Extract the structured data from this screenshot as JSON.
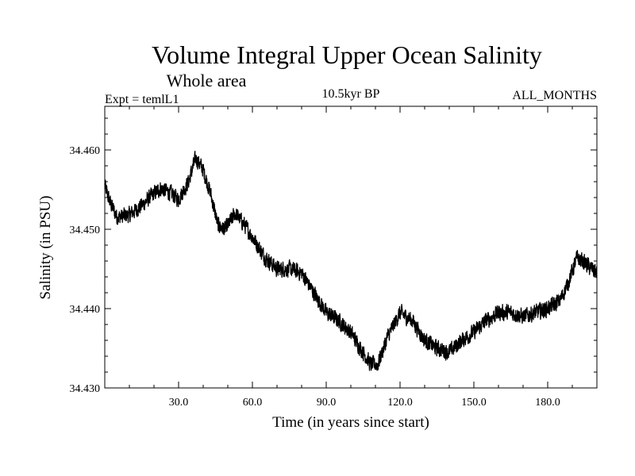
{
  "chart_data": {
    "type": "line",
    "title": "Volume Integral Upper Ocean Salinity",
    "subtitle": "Whole area",
    "expt_label": "Expt = temlL1",
    "period_label": "10.5kyr BP",
    "months_label": "ALL_MONTHS",
    "xlabel": "Time (in years since start)",
    "ylabel": "Salinity (in PSU)",
    "xlim": [
      0,
      200
    ],
    "ylim": [
      34.43,
      34.4655
    ],
    "x_ticks": [
      30,
      60,
      90,
      120,
      150,
      180
    ],
    "x_tick_labels": [
      "30.0",
      "60.0",
      "90.0",
      "120.0",
      "150.0",
      "180.0"
    ],
    "x_minor_step": 10,
    "y_ticks": [
      34.43,
      34.44,
      34.45,
      34.46
    ],
    "y_tick_labels": [
      "34.430",
      "34.440",
      "34.450",
      "34.460"
    ],
    "y_minor_step": 0.002,
    "grid": false,
    "line_color": "#000000",
    "noise_amplitude": 0.0013,
    "series": [
      {
        "name": "Salinity",
        "x": [
          0,
          2,
          5,
          10,
          15,
          20,
          23,
          27,
          30,
          34,
          37,
          40,
          43,
          46,
          49,
          53,
          57,
          61,
          65,
          70,
          75,
          80,
          85,
          90,
          95,
          100,
          105,
          108,
          111,
          115,
          120,
          125,
          130,
          135,
          140,
          145,
          150,
          155,
          160,
          165,
          170,
          175,
          180,
          185,
          188,
          192,
          196,
          200
        ],
        "y": [
          34.4555,
          34.4535,
          34.4515,
          34.4518,
          34.453,
          34.4545,
          34.4552,
          34.4545,
          34.4538,
          34.456,
          34.459,
          34.4575,
          34.4545,
          34.4505,
          34.45,
          34.452,
          34.4505,
          34.4485,
          34.4465,
          34.445,
          34.445,
          34.4445,
          34.442,
          34.4395,
          34.4385,
          34.437,
          34.4345,
          34.433,
          34.433,
          34.4365,
          34.4395,
          34.4385,
          34.436,
          34.435,
          34.4345,
          34.436,
          34.437,
          34.4385,
          34.4395,
          34.4395,
          34.439,
          34.4395,
          34.44,
          34.441,
          34.443,
          34.4465,
          34.4455,
          34.4445
        ]
      }
    ]
  }
}
